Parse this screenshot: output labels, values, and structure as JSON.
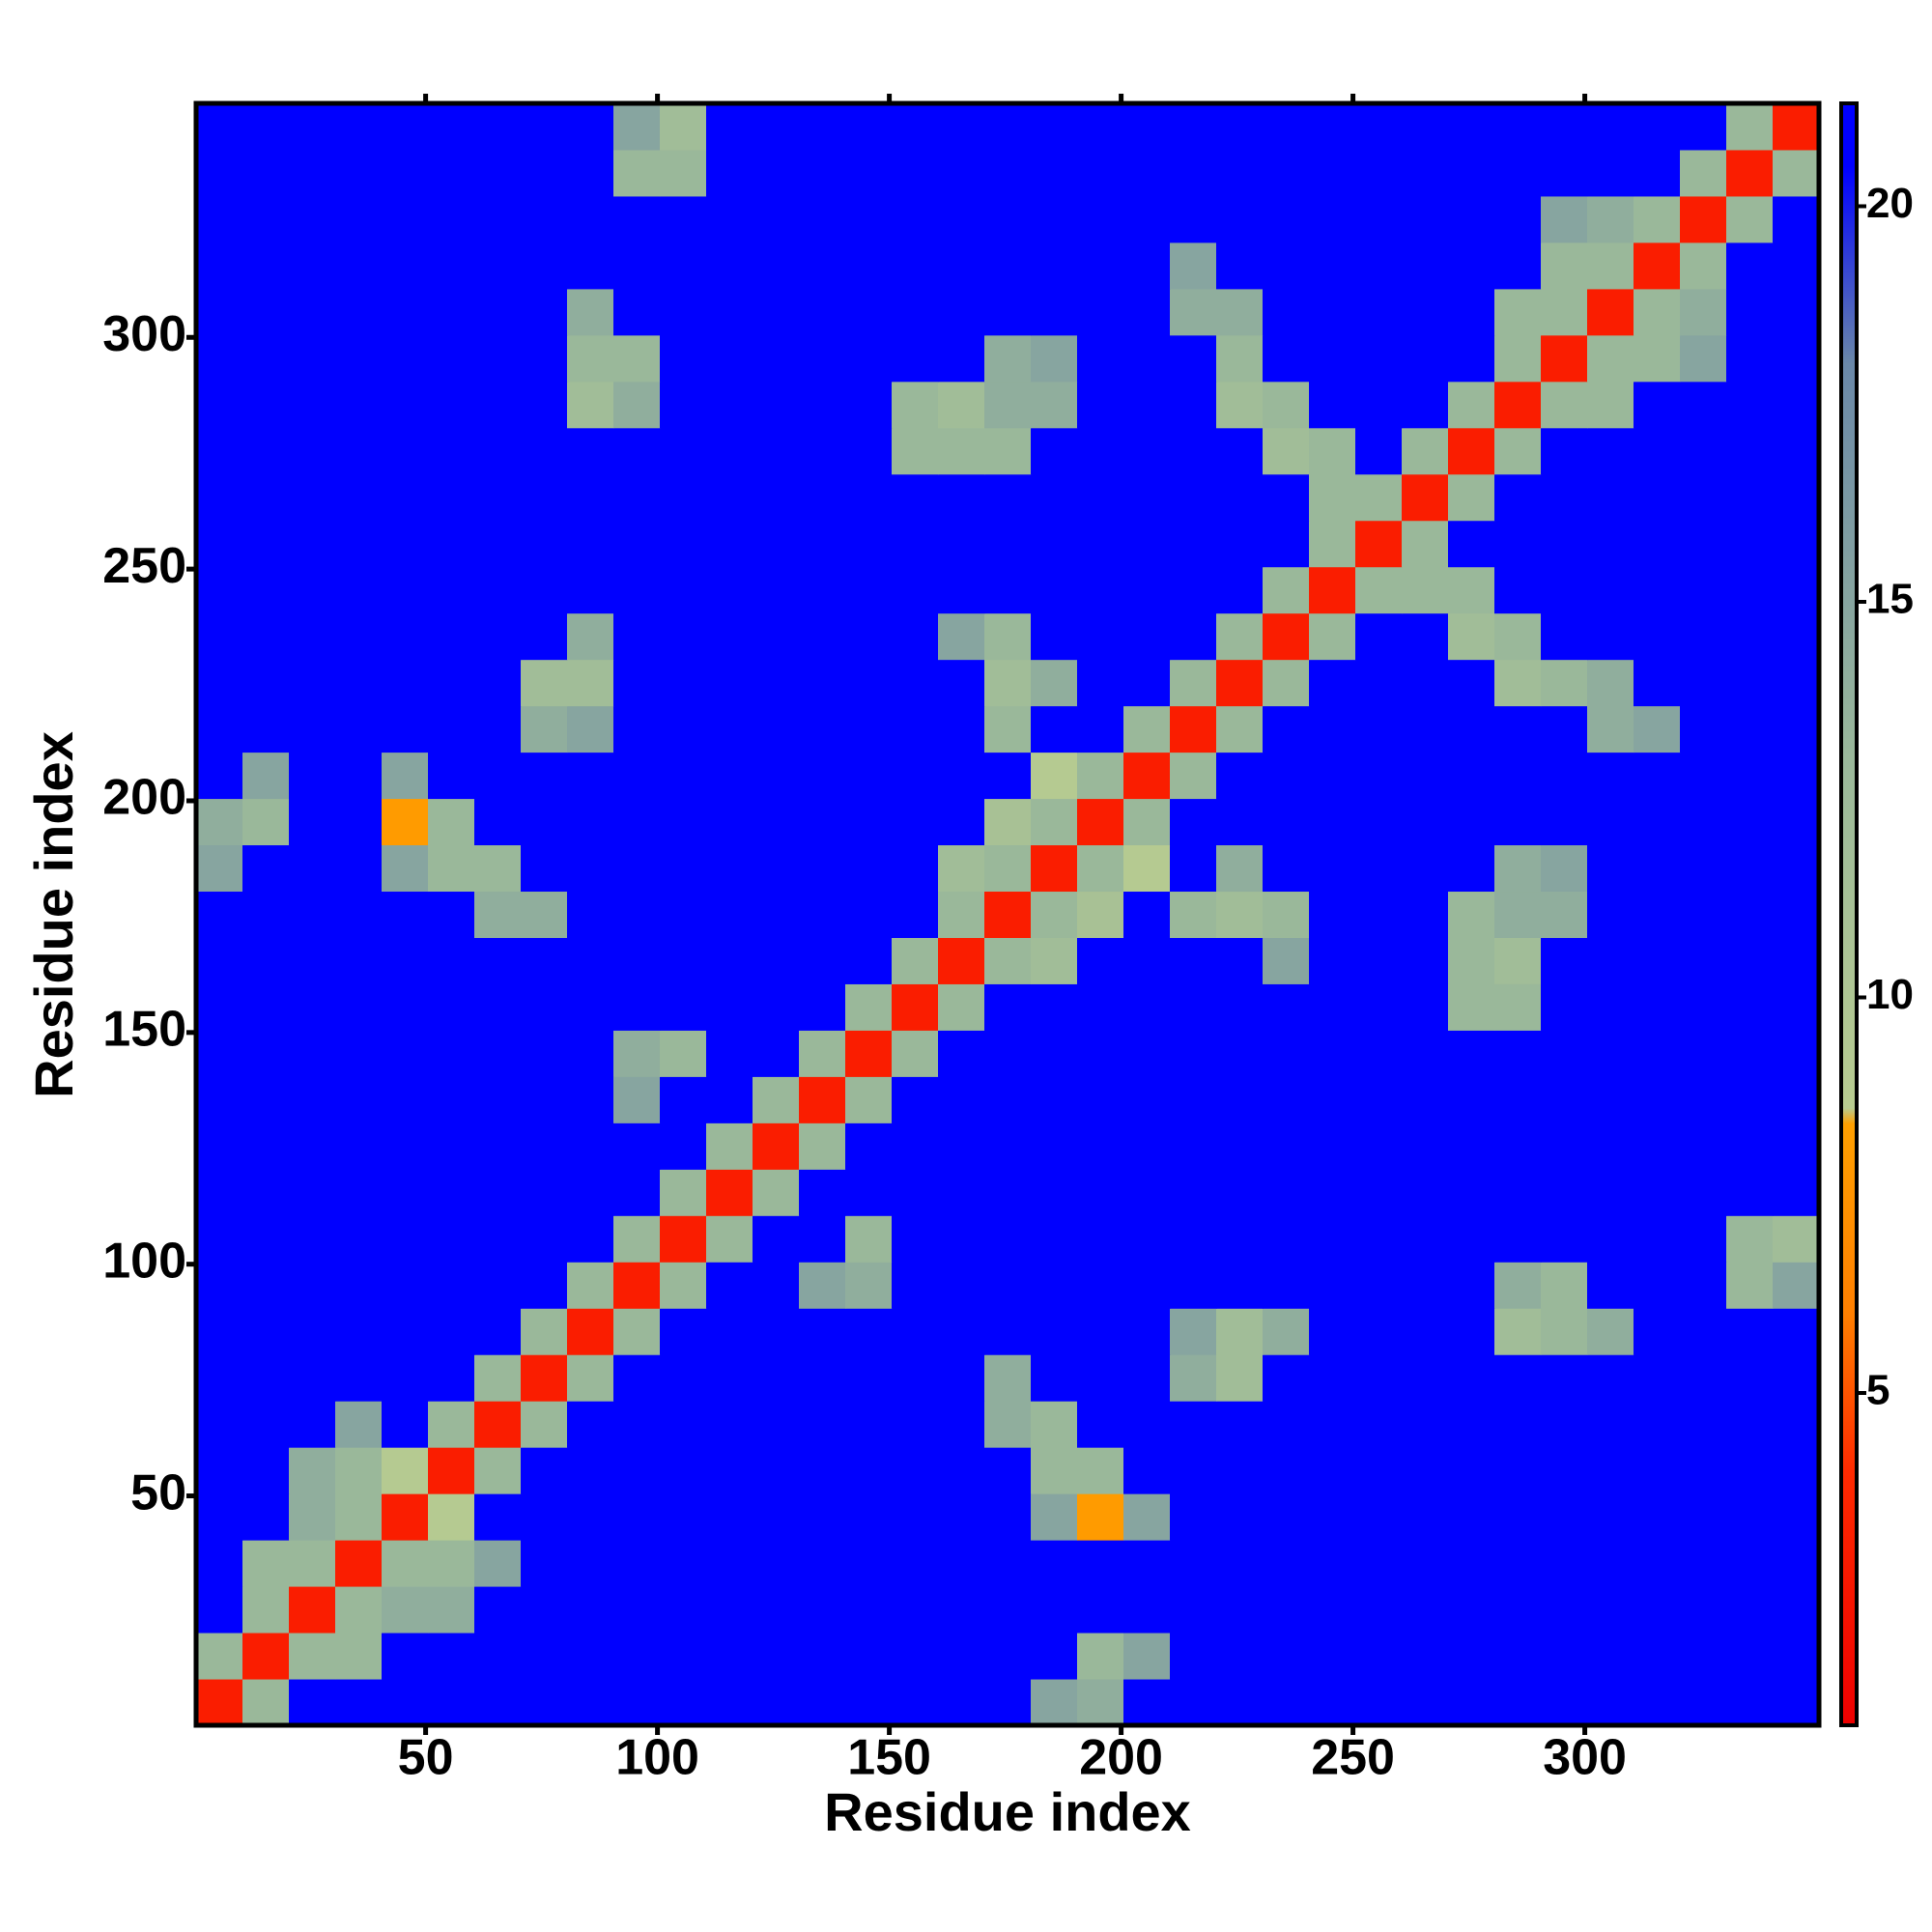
{
  "chart_data": {
    "type": "heatmap",
    "xlabel": "Residue index",
    "ylabel": "Residue index",
    "x": [
      5.5,
      15.5,
      25.5,
      35.5,
      45.5,
      55.5,
      65.5,
      75.5,
      85.5,
      95.5,
      105.5,
      115.5,
      125.5,
      135.5,
      145.5,
      155.5,
      165.5,
      175.5,
      185.5,
      195.5,
      205.5,
      215.5,
      225.5,
      235.5,
      245.5,
      255.5,
      265.5,
      275.5,
      285.5,
      295.5,
      305.5,
      315.5,
      325.5,
      335.5,
      345.5
    ],
    "y": [
      5.5,
      15.5,
      25.5,
      35.5,
      45.5,
      55.5,
      65.5,
      75.5,
      85.5,
      95.5,
      105.5,
      115.5,
      125.5,
      135.5,
      145.5,
      155.5,
      165.5,
      175.5,
      185.5,
      195.5,
      205.5,
      215.5,
      225.5,
      235.5,
      245.5,
      255.5,
      265.5,
      275.5,
      285.5,
      295.5,
      305.5,
      315.5,
      325.5,
      335.5,
      345.5
    ],
    "z": [
      [
        3,
        13,
        21,
        21,
        21,
        21,
        21,
        21,
        21,
        21,
        21,
        21,
        21,
        21,
        21,
        21,
        21,
        21,
        15,
        14,
        21,
        21,
        21,
        21,
        21,
        21,
        21,
        21,
        21,
        21,
        21,
        21,
        21,
        21,
        21
      ],
      [
        13,
        3,
        13,
        13,
        21,
        21,
        21,
        21,
        21,
        21,
        21,
        21,
        21,
        21,
        21,
        21,
        21,
        21,
        21,
        13,
        15,
        21,
        21,
        21,
        21,
        21,
        21,
        21,
        21,
        21,
        21,
        21,
        21,
        21,
        21
      ],
      [
        21,
        13,
        3,
        13,
        14,
        14,
        21,
        21,
        21,
        21,
        21,
        21,
        21,
        21,
        21,
        21,
        21,
        21,
        21,
        21,
        21,
        21,
        21,
        21,
        21,
        21,
        21,
        21,
        21,
        21,
        21,
        21,
        21,
        21,
        21
      ],
      [
        21,
        13,
        13,
        3,
        13,
        13,
        15,
        21,
        21,
        21,
        21,
        21,
        21,
        21,
        21,
        21,
        21,
        21,
        21,
        21,
        21,
        21,
        21,
        21,
        21,
        21,
        21,
        21,
        21,
        21,
        21,
        21,
        21,
        21,
        21
      ],
      [
        21,
        21,
        14,
        13,
        3,
        9,
        21,
        21,
        21,
        21,
        21,
        21,
        21,
        21,
        21,
        21,
        21,
        21,
        15,
        8,
        15,
        21,
        21,
        21,
        21,
        21,
        21,
        21,
        21,
        21,
        21,
        21,
        21,
        21,
        21
      ],
      [
        21,
        21,
        14,
        13,
        9,
        3,
        13,
        21,
        21,
        21,
        21,
        21,
        21,
        21,
        21,
        21,
        21,
        21,
        13,
        13,
        21,
        21,
        21,
        21,
        21,
        21,
        21,
        21,
        21,
        21,
        21,
        21,
        21,
        21,
        21
      ],
      [
        21,
        21,
        21,
        15,
        21,
        13,
        3,
        13,
        21,
        21,
        21,
        21,
        21,
        21,
        21,
        21,
        21,
        14,
        13,
        21,
        21,
        21,
        21,
        21,
        21,
        21,
        21,
        21,
        21,
        21,
        21,
        21,
        21,
        21,
        21
      ],
      [
        21,
        21,
        21,
        21,
        21,
        21,
        13,
        3,
        13,
        21,
        21,
        21,
        21,
        21,
        21,
        21,
        21,
        14,
        21,
        21,
        21,
        14,
        12,
        21,
        21,
        21,
        21,
        21,
        21,
        21,
        21,
        21,
        21,
        21,
        21
      ],
      [
        21,
        21,
        21,
        21,
        21,
        21,
        21,
        13,
        3,
        13,
        21,
        21,
        21,
        21,
        21,
        21,
        21,
        21,
        21,
        21,
        21,
        15,
        12,
        14,
        21,
        21,
        21,
        21,
        12,
        13,
        14,
        21,
        21,
        21,
        21
      ],
      [
        21,
        21,
        21,
        21,
        21,
        21,
        21,
        21,
        13,
        3,
        13,
        21,
        21,
        15,
        14,
        21,
        21,
        21,
        21,
        21,
        21,
        21,
        21,
        21,
        21,
        21,
        21,
        21,
        14,
        13,
        21,
        21,
        21,
        13,
        15
      ],
      [
        21,
        21,
        21,
        21,
        21,
        21,
        21,
        21,
        21,
        13,
        3,
        13,
        21,
        21,
        13,
        21,
        21,
        21,
        21,
        21,
        21,
        21,
        21,
        21,
        21,
        21,
        21,
        21,
        21,
        21,
        21,
        21,
        21,
        13,
        12
      ],
      [
        21,
        21,
        21,
        21,
        21,
        21,
        21,
        21,
        21,
        21,
        13,
        3,
        13,
        21,
        21,
        21,
        21,
        21,
        21,
        21,
        21,
        21,
        21,
        21,
        21,
        21,
        21,
        21,
        21,
        21,
        21,
        21,
        21,
        21,
        21
      ],
      [
        21,
        21,
        21,
        21,
        21,
        21,
        21,
        21,
        21,
        21,
        21,
        13,
        3,
        13,
        21,
        21,
        21,
        21,
        21,
        21,
        21,
        21,
        21,
        21,
        21,
        21,
        21,
        21,
        21,
        21,
        21,
        21,
        21,
        21,
        21
      ],
      [
        21,
        21,
        21,
        21,
        21,
        21,
        21,
        21,
        21,
        15,
        21,
        21,
        13,
        3,
        13,
        21,
        21,
        21,
        21,
        21,
        21,
        21,
        21,
        21,
        21,
        21,
        21,
        21,
        21,
        21,
        21,
        21,
        21,
        21,
        21
      ],
      [
        21,
        21,
        21,
        21,
        21,
        21,
        21,
        21,
        21,
        14,
        13,
        21,
        21,
        13,
        3,
        13,
        21,
        21,
        21,
        21,
        21,
        21,
        21,
        21,
        21,
        21,
        21,
        21,
        21,
        21,
        21,
        21,
        21,
        21,
        21
      ],
      [
        21,
        21,
        21,
        21,
        21,
        21,
        21,
        21,
        21,
        21,
        21,
        21,
        21,
        21,
        13,
        3,
        13,
        21,
        21,
        21,
        21,
        21,
        21,
        21,
        21,
        21,
        21,
        13,
        13,
        21,
        21,
        21,
        21,
        21,
        21
      ],
      [
        21,
        21,
        21,
        21,
        21,
        21,
        21,
        21,
        21,
        21,
        21,
        21,
        21,
        21,
        21,
        13,
        3,
        13,
        12,
        21,
        21,
        21,
        21,
        15,
        21,
        21,
        21,
        13,
        12,
        21,
        21,
        21,
        21,
        21,
        21
      ],
      [
        21,
        21,
        21,
        21,
        21,
        21,
        14,
        14,
        21,
        21,
        21,
        21,
        21,
        21,
        21,
        21,
        13,
        3,
        13,
        11,
        21,
        13,
        12,
        13,
        21,
        21,
        21,
        13,
        14,
        14,
        21,
        21,
        21,
        21,
        21
      ],
      [
        15,
        21,
        21,
        21,
        15,
        13,
        13,
        21,
        21,
        21,
        21,
        21,
        21,
        21,
        21,
        21,
        12,
        13,
        3,
        13,
        9,
        21,
        14,
        21,
        21,
        21,
        21,
        21,
        14,
        15,
        21,
        21,
        21,
        21,
        21
      ],
      [
        14,
        13,
        21,
        21,
        8,
        13,
        21,
        21,
        21,
        21,
        21,
        21,
        21,
        21,
        21,
        21,
        21,
        11,
        13,
        3,
        13,
        21,
        21,
        21,
        21,
        21,
        21,
        21,
        21,
        21,
        21,
        21,
        21,
        21,
        21
      ],
      [
        21,
        15,
        21,
        21,
        15,
        21,
        21,
        21,
        21,
        21,
        21,
        21,
        21,
        21,
        21,
        21,
        21,
        21,
        9,
        13,
        3,
        13,
        21,
        21,
        21,
        21,
        21,
        21,
        21,
        21,
        21,
        21,
        21,
        21,
        21
      ],
      [
        21,
        21,
        21,
        21,
        21,
        21,
        21,
        14,
        15,
        21,
        21,
        21,
        21,
        21,
        21,
        21,
        21,
        13,
        21,
        21,
        13,
        3,
        13,
        21,
        21,
        21,
        21,
        21,
        21,
        21,
        14,
        15,
        21,
        21,
        21
      ],
      [
        21,
        21,
        21,
        21,
        21,
        21,
        21,
        12,
        12,
        21,
        21,
        21,
        21,
        21,
        21,
        21,
        21,
        12,
        14,
        21,
        21,
        13,
        3,
        13,
        21,
        21,
        21,
        21,
        12,
        13,
        14,
        21,
        21,
        21,
        21
      ],
      [
        21,
        21,
        21,
        21,
        21,
        21,
        21,
        21,
        14,
        21,
        21,
        21,
        21,
        21,
        21,
        21,
        15,
        13,
        21,
        21,
        21,
        21,
        13,
        3,
        13,
        21,
        21,
        12,
        13,
        21,
        21,
        21,
        21,
        21,
        21
      ],
      [
        21,
        21,
        21,
        21,
        21,
        21,
        21,
        21,
        21,
        21,
        21,
        21,
        21,
        21,
        21,
        21,
        21,
        21,
        21,
        21,
        21,
        21,
        21,
        13,
        3,
        13,
        13,
        13,
        21,
        21,
        21,
        21,
        21,
        21,
        21
      ],
      [
        21,
        21,
        21,
        21,
        21,
        21,
        21,
        21,
        21,
        21,
        21,
        21,
        21,
        21,
        21,
        21,
        21,
        21,
        21,
        21,
        21,
        21,
        21,
        21,
        13,
        3,
        13,
        21,
        21,
        21,
        21,
        21,
        21,
        21,
        21
      ],
      [
        21,
        21,
        21,
        21,
        21,
        21,
        21,
        21,
        21,
        21,
        21,
        21,
        21,
        21,
        21,
        21,
        21,
        21,
        21,
        21,
        21,
        21,
        21,
        21,
        13,
        13,
        3,
        13,
        21,
        21,
        21,
        21,
        21,
        21,
        21
      ],
      [
        21,
        21,
        21,
        21,
        21,
        21,
        21,
        21,
        21,
        21,
        21,
        21,
        21,
        21,
        21,
        13,
        13,
        13,
        21,
        21,
        21,
        21,
        21,
        12,
        13,
        21,
        13,
        3,
        13,
        21,
        21,
        21,
        21,
        21,
        21
      ],
      [
        21,
        21,
        21,
        21,
        21,
        21,
        21,
        21,
        12,
        14,
        21,
        21,
        21,
        21,
        21,
        13,
        12,
        14,
        14,
        21,
        21,
        21,
        12,
        13,
        21,
        21,
        21,
        13,
        3,
        13,
        13,
        21,
        21,
        21,
        21
      ],
      [
        21,
        21,
        21,
        21,
        21,
        21,
        21,
        21,
        13,
        13,
        21,
        21,
        21,
        21,
        21,
        21,
        21,
        14,
        15,
        21,
        21,
        21,
        13,
        21,
        21,
        21,
        21,
        21,
        13,
        3,
        13,
        13,
        15,
        21,
        21
      ],
      [
        21,
        21,
        21,
        21,
        21,
        21,
        21,
        21,
        14,
        21,
        21,
        21,
        21,
        21,
        21,
        21,
        21,
        21,
        21,
        21,
        21,
        14,
        14,
        21,
        21,
        21,
        21,
        21,
        13,
        13,
        3,
        13,
        14,
        21,
        21
      ],
      [
        21,
        21,
        21,
        21,
        21,
        21,
        21,
        21,
        21,
        21,
        21,
        21,
        21,
        21,
        21,
        21,
        21,
        21,
        21,
        21,
        21,
        15,
        21,
        21,
        21,
        21,
        21,
        21,
        21,
        13,
        13,
        3,
        13,
        21,
        21
      ],
      [
        21,
        21,
        21,
        21,
        21,
        21,
        21,
        21,
        21,
        21,
        21,
        21,
        21,
        21,
        21,
        21,
        21,
        21,
        21,
        21,
        21,
        21,
        21,
        21,
        21,
        21,
        21,
        21,
        21,
        15,
        14,
        13,
        3,
        13,
        21
      ],
      [
        21,
        21,
        21,
        21,
        21,
        21,
        21,
        21,
        21,
        13,
        13,
        21,
        21,
        21,
        21,
        21,
        21,
        21,
        21,
        21,
        21,
        21,
        21,
        21,
        21,
        21,
        21,
        21,
        21,
        21,
        21,
        21,
        13,
        3,
        13
      ],
      [
        21,
        21,
        21,
        21,
        21,
        21,
        21,
        21,
        21,
        15,
        12,
        21,
        21,
        21,
        21,
        21,
        21,
        21,
        21,
        21,
        21,
        21,
        21,
        21,
        21,
        21,
        21,
        21,
        21,
        21,
        21,
        21,
        21,
        13,
        3
      ]
    ],
    "xlim": [
      0.5,
      350.5
    ],
    "ylim": [
      0.5,
      350.5
    ],
    "xticks": [
      50,
      100,
      150,
      200,
      250,
      300
    ],
    "yticks": [
      50,
      100,
      150,
      200,
      250,
      300
    ],
    "zlim": [
      0.8,
      21.3
    ],
    "zticks": [
      5,
      10,
      15,
      20
    ],
    "colorscale": [
      [
        0.8,
        "#ee0000"
      ],
      [
        4,
        "#ff2a00"
      ],
      [
        6,
        "#ff7f00"
      ],
      [
        8.4,
        "#ffa000"
      ],
      [
        8.6,
        "#b8cc90"
      ],
      [
        13,
        "#9ab89a"
      ],
      [
        18,
        "#6a88a8"
      ],
      [
        20.5,
        "#0000ff"
      ]
    ]
  }
}
